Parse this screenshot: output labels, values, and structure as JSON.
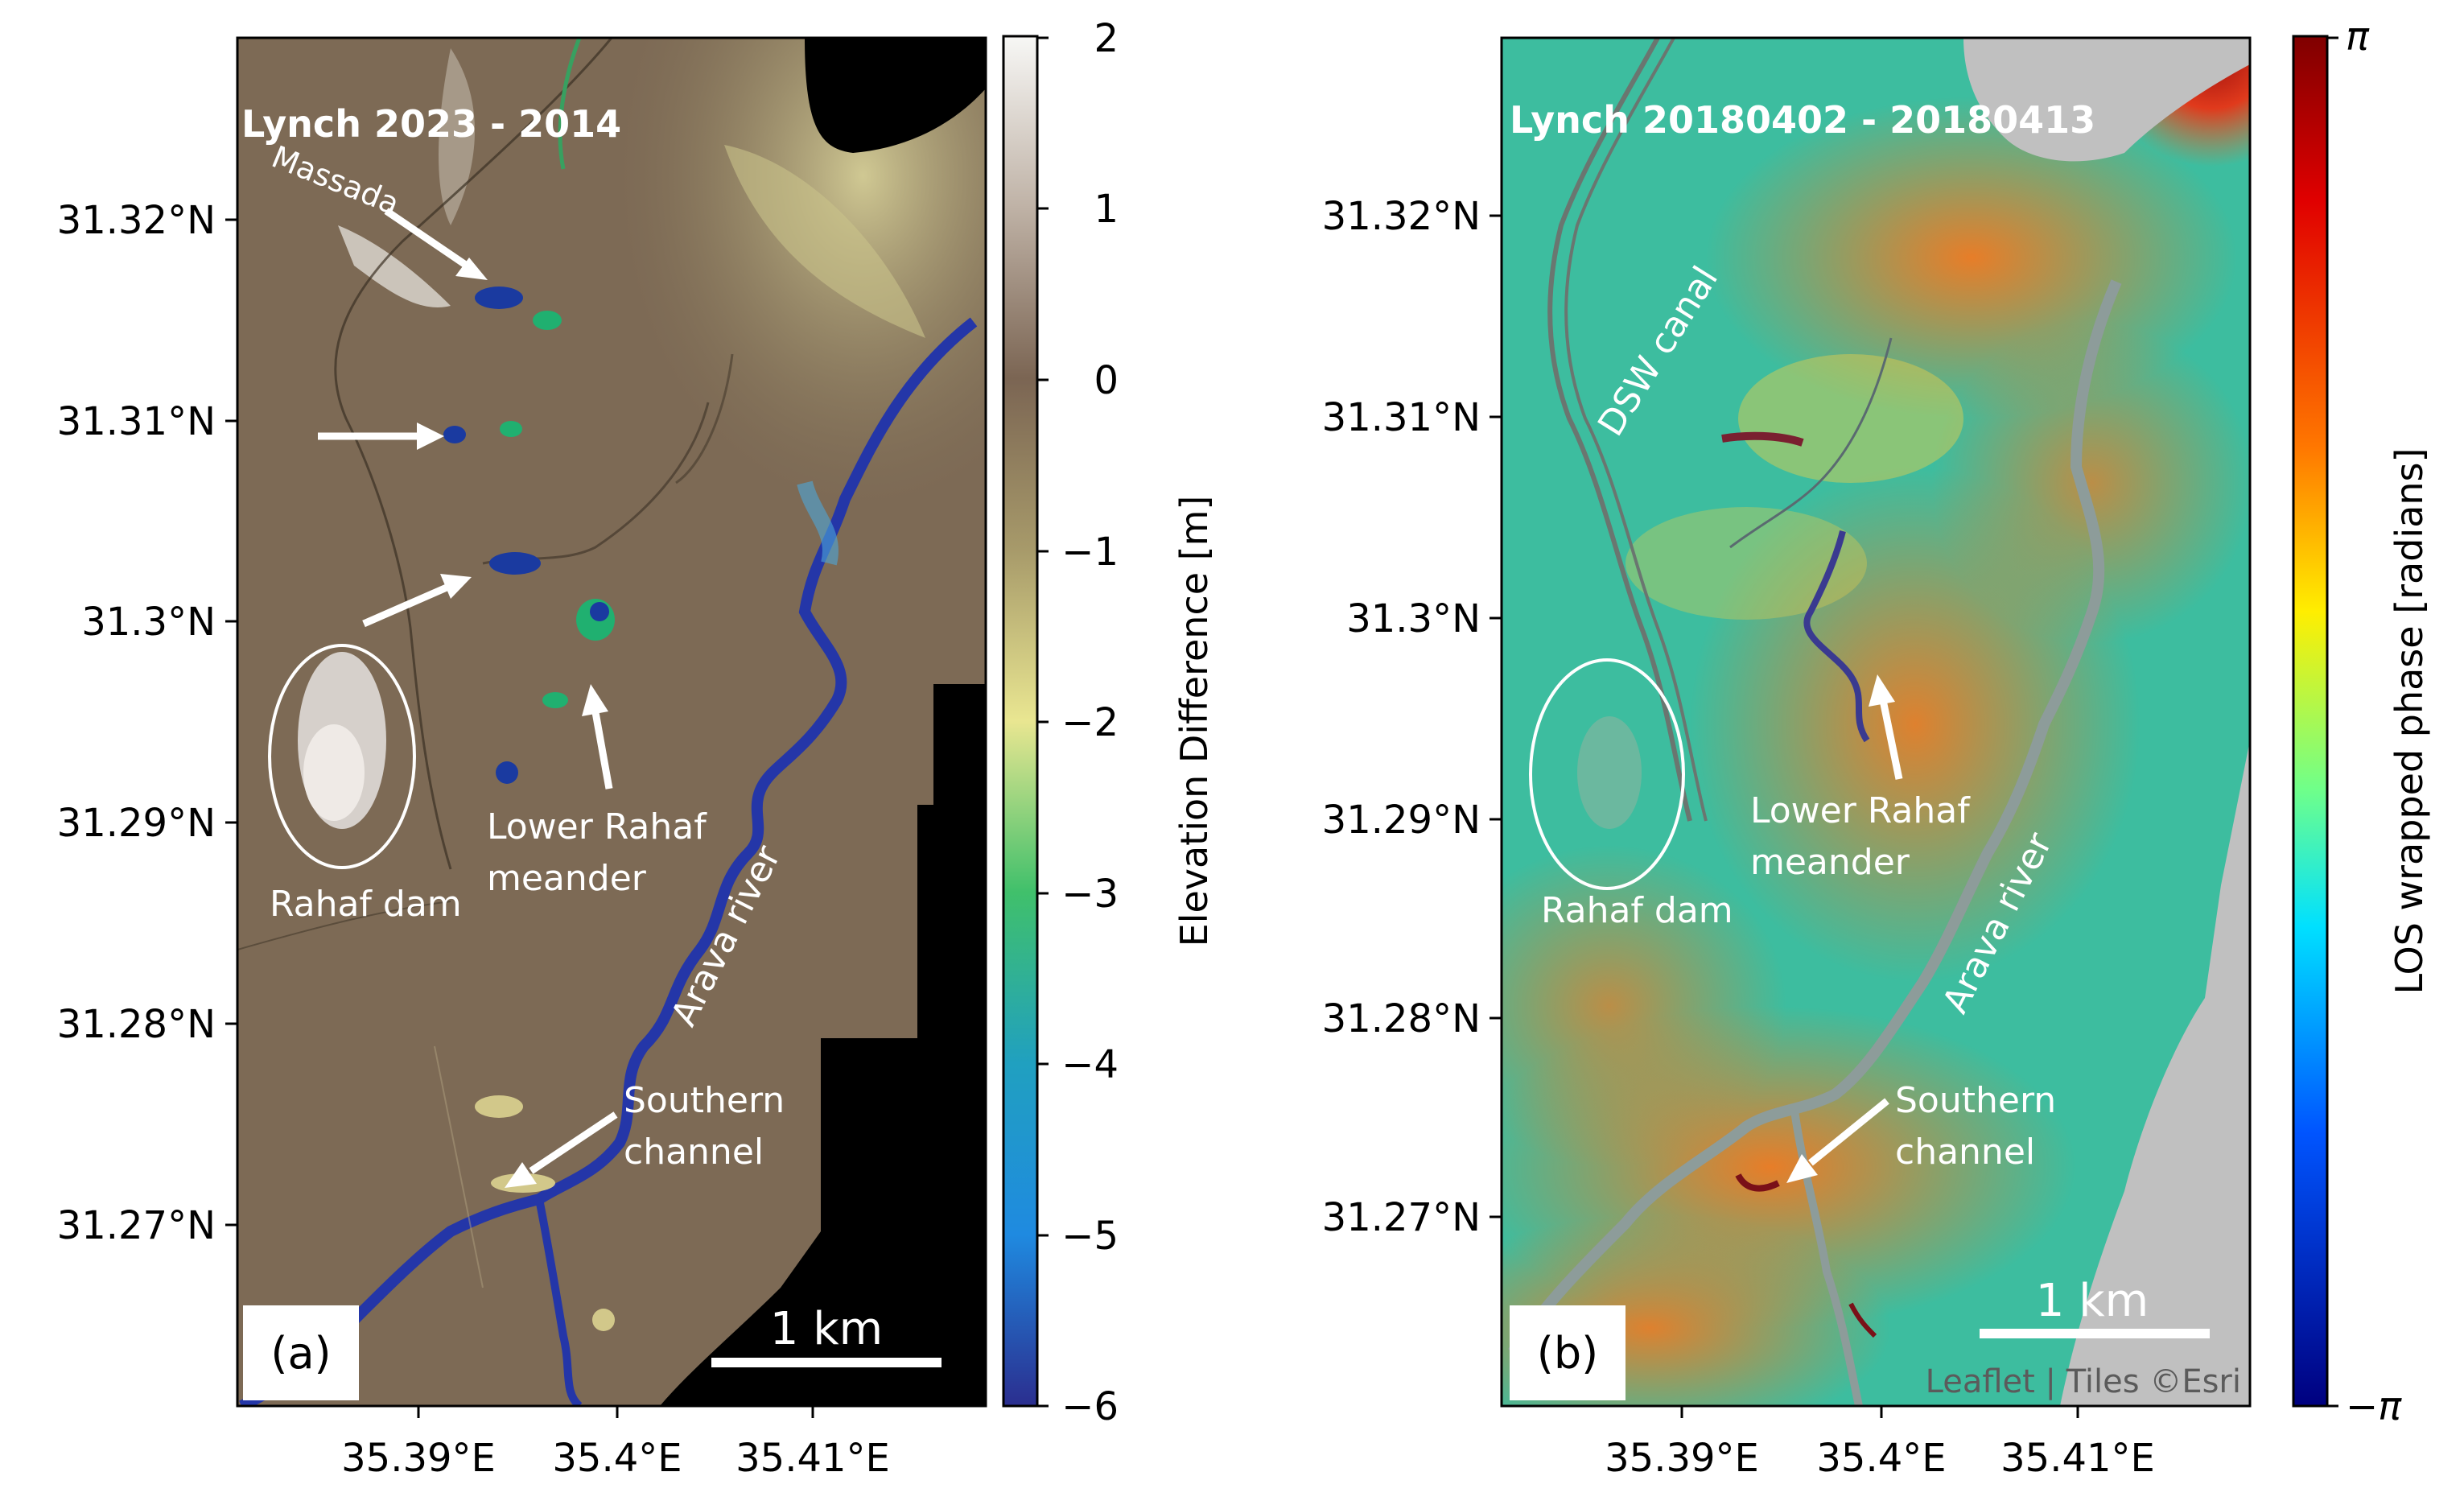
{
  "panel_a": {
    "title": "Lynch 2023 - 2014",
    "letter": "(a)",
    "scale_bar": "1 km",
    "y_ticks": [
      "31.32°N",
      "31.31°N",
      "31.3°N",
      "31.29°N",
      "31.28°N",
      "31.27°N"
    ],
    "x_ticks": [
      "35.39°E",
      "35.4°E",
      "35.41°E"
    ],
    "labels": {
      "massada": "Massada",
      "rahaf_dam": "Rahaf dam",
      "lower_rahaf_1": "Lower Rahaf",
      "lower_rahaf_2": "meander",
      "arava": "Arava river",
      "southern_1": "Southern",
      "southern_2": "channel"
    },
    "colorbar": {
      "label": "Elevation Difference [m]",
      "ticks": [
        "2",
        "1",
        "0",
        "−1",
        "−2",
        "−3",
        "−4",
        "−5",
        "−6"
      ]
    }
  },
  "panel_b": {
    "title": "Lynch 20180402 - 20180413",
    "letter": "(b)",
    "scale_bar": "1 km",
    "attribution": "Leaflet | Tiles ©Esri",
    "y_ticks": [
      "31.32°N",
      "31.31°N",
      "31.3°N",
      "31.29°N",
      "31.28°N",
      "31.27°N"
    ],
    "x_ticks": [
      "35.39°E",
      "35.4°E",
      "35.41°E"
    ],
    "labels": {
      "dsw": "DSW canal",
      "rahaf_dam": "Rahaf dam",
      "lower_rahaf_1": "Lower Rahaf",
      "lower_rahaf_2": "meander",
      "arava": "Arava river",
      "southern_1": "Southern",
      "southern_2": "channel"
    },
    "colorbar": {
      "label": "LOS wrapped phase [radians]",
      "ticks": [
        "π",
        "−π"
      ]
    }
  },
  "colors": {
    "brown_base": "#7d6a55",
    "river_blue": "#2436a8",
    "phase_base": "#3dbd9f",
    "phase_orange": "#f08a2a",
    "phase_red": "#b01a14",
    "gray_mask": "#c0c0c0"
  }
}
